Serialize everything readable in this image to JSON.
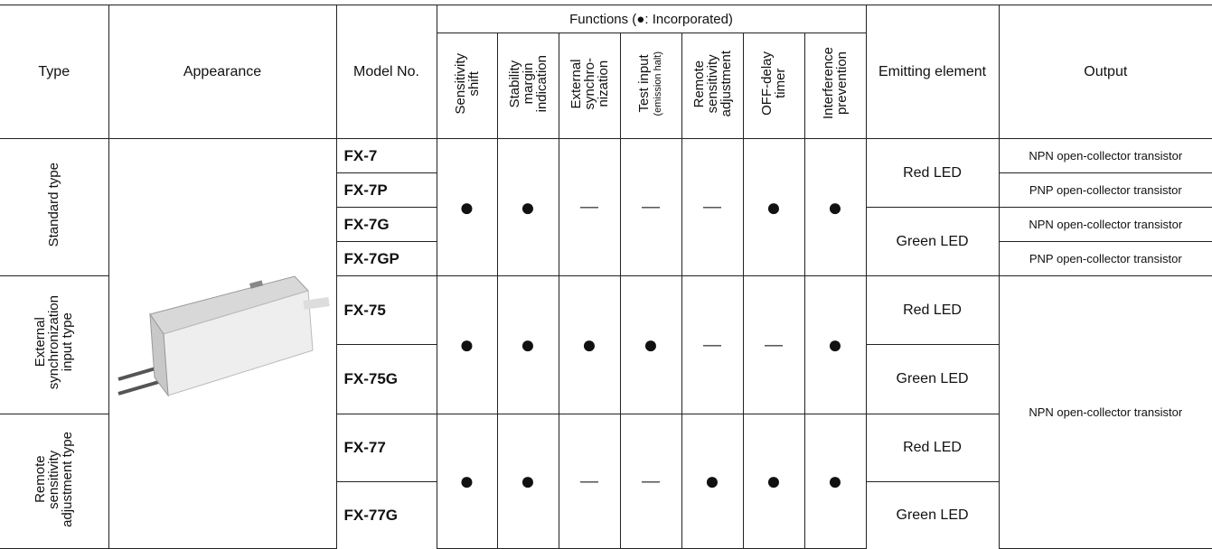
{
  "header": {
    "type": "Type",
    "appearance": "Appearance",
    "model": "Model No.",
    "functions": "Functions (●: Incorporated)",
    "function_columns": [
      {
        "label": "Sensitivity\nshift"
      },
      {
        "label": "Stability\nmargin\nindication"
      },
      {
        "label": "External\nsynchro-\nnization"
      },
      {
        "label": "Test input",
        "note": "(emission halt)"
      },
      {
        "label": "Remote\nsensitivity\nadjustment"
      },
      {
        "label": "OFF-delay\ntimer"
      },
      {
        "label": "Interference\nprevention"
      }
    ],
    "emitting": "Emitting element",
    "output": "Output"
  },
  "groups": [
    {
      "type": "Standard type",
      "functions": [
        "●",
        "●",
        "—",
        "—",
        "—",
        "●",
        "●"
      ],
      "models": [
        "FX-7",
        "FX-7P",
        "FX-7G",
        "FX-7GP"
      ],
      "emitting": [
        "Red LED",
        "Green LED"
      ],
      "outputs": [
        "NPN open-collector transistor",
        "PNP open-collector transistor",
        "NPN open-collector transistor",
        "PNP open-collector transistor"
      ]
    },
    {
      "type": "External\nsynchronization\ninput type",
      "functions": [
        "●",
        "●",
        "●",
        "●",
        "—",
        "—",
        "●"
      ],
      "models": [
        "FX-75",
        "FX-75G"
      ],
      "emitting": [
        "Red LED",
        "Green LED"
      ]
    },
    {
      "type": "Remote\nsensitivity\nadjustment type",
      "functions": [
        "●",
        "●",
        "—",
        "—",
        "●",
        "●",
        "●"
      ],
      "models": [
        "FX-77",
        "FX-77G"
      ],
      "emitting": [
        "Red LED",
        "Green LED"
      ]
    }
  ],
  "shared_output": "NPN open-collector transistor"
}
